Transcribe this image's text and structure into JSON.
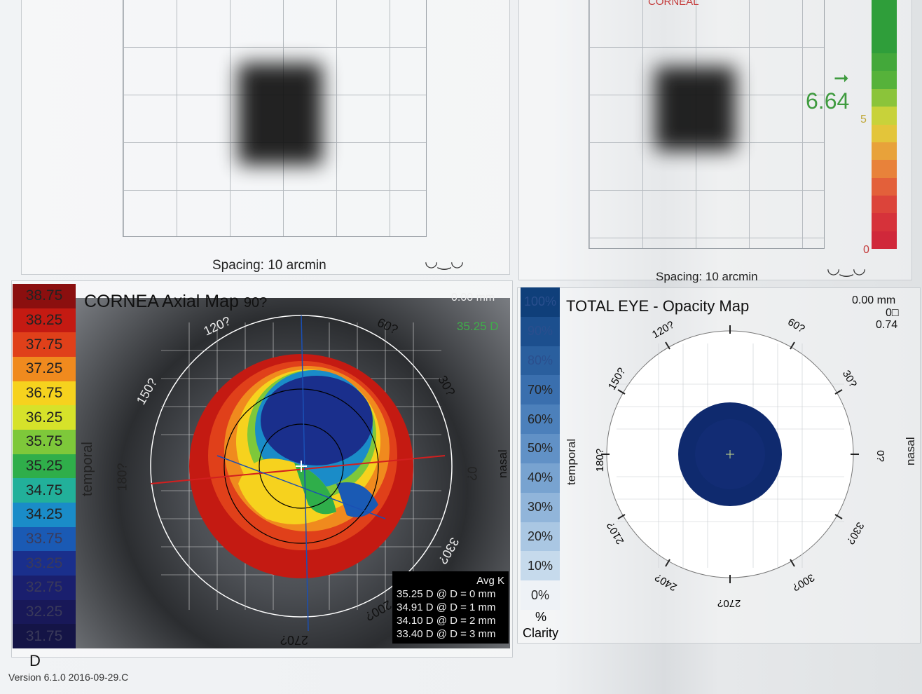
{
  "top_left": {
    "spacing_label": "Spacing:",
    "spacing_value": "10 arcmin"
  },
  "top_right": {
    "header_text": "CORNEAL",
    "spacing_label": "Spacing:",
    "spacing_value": "10 arcmin",
    "value": "6.64",
    "scale_mid": "5",
    "scale_min": "0",
    "scale_colors": [
      "#2f9e3a",
      "#2f9e3a",
      "#2f9e3a",
      "#43a83a",
      "#56b23a",
      "#8bc43a",
      "#c8d23a",
      "#e3c53a",
      "#e8a23a",
      "#e8823a",
      "#e3603a",
      "#dc443a",
      "#d6323a",
      "#d0283a"
    ]
  },
  "cornea_map": {
    "title": "CORNEA  Axial Map",
    "angle_90": "90?",
    "angle_120": "120?",
    "angle_60": "60?",
    "angle_150": "150?",
    "angle_30": "30?",
    "angle_180": "180?",
    "angle_0": "0?",
    "angle_330": "330?",
    "angle_270": "270?",
    "angle_200": "200?",
    "mm": "0.00 mm",
    "d_value": "35.25 D",
    "temporal": "temporal",
    "nasal": "nasal",
    "legend_unit": "D",
    "legend": [
      {
        "label": "38.75",
        "color": "#8b0f0f"
      },
      {
        "label": "38.25",
        "color": "#c41a12"
      },
      {
        "label": "37.75",
        "color": "#e0401a"
      },
      {
        "label": "37.25",
        "color": "#f08a1e"
      },
      {
        "label": "36.75",
        "color": "#f6d21e"
      },
      {
        "label": "36.25",
        "color": "#d6e22a"
      },
      {
        "label": "35.75",
        "color": "#7ec83a"
      },
      {
        "label": "35.25",
        "color": "#2fae4a"
      },
      {
        "label": "34.75",
        "color": "#22b09a"
      },
      {
        "label": "34.25",
        "color": "#1a8cc8"
      },
      {
        "label": "33.75",
        "color": "#1a5ab4"
      },
      {
        "label": "33.25",
        "color": "#1a2f8c"
      },
      {
        "label": "32.75",
        "color": "#1a1f6e"
      },
      {
        "label": "32.25",
        "color": "#181858"
      },
      {
        "label": "31.75",
        "color": "#141446"
      }
    ],
    "avg_k_title": "Avg K",
    "avg_k": [
      "35.25 D @ D = 0 mm",
      "34.91 D @ D = 1 mm",
      "34.10 D @ D = 2 mm",
      "33.40 D @ D = 3 mm"
    ]
  },
  "opacity_map": {
    "title": "TOTAL EYE - Opacity Map",
    "mm": "0.00 mm",
    "mm2": "0□",
    "mm3": "0.74",
    "temporal": "temporal",
    "nasal": "nasal",
    "angle_120": "120?",
    "angle_60": "60?",
    "angle_150": "150?",
    "angle_30": "30?",
    "angle_180": "180?",
    "angle_0": "0?",
    "angle_210": "210?",
    "angle_330": "330?",
    "angle_240": "240?",
    "angle_300": "300?",
    "angle_270": "270?",
    "legend": [
      {
        "label": "100%",
        "color": "#0f3f7a"
      },
      {
        "label": "90%",
        "color": "#1c4f8e"
      },
      {
        "label": "80%",
        "color": "#2a5f9e"
      },
      {
        "label": "70%",
        "color": "#3a6fae"
      },
      {
        "label": "60%",
        "color": "#4c80bb"
      },
      {
        "label": "50%",
        "color": "#6191c6"
      },
      {
        "label": "40%",
        "color": "#78a3d0"
      },
      {
        "label": "30%",
        "color": "#91b5da"
      },
      {
        "label": "20%",
        "color": "#aac7e3"
      },
      {
        "label": "10%",
        "color": "#c6daec"
      },
      {
        "label": "0%",
        "color": "#eef2f6"
      }
    ],
    "legend_unit": "%",
    "legend_unit2": "Clarity"
  },
  "version": "Version 6.1.0 2016-09-29.C"
}
